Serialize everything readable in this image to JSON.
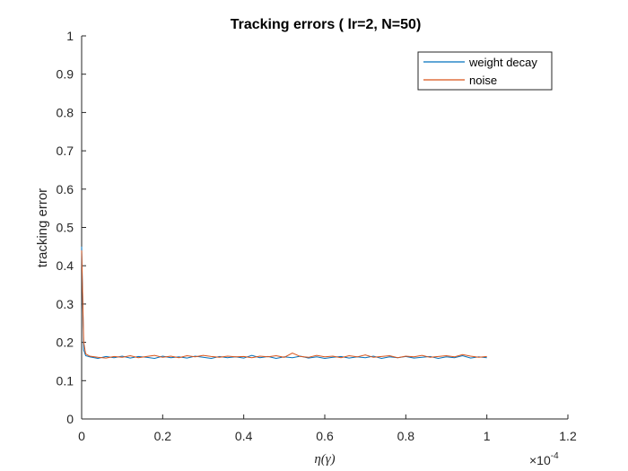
{
  "chart_data": {
    "type": "line",
    "title": "Tracking errors ( lr=2, N=50)",
    "xlabel_parts": [
      "η(",
      "γ",
      ")"
    ],
    "ylabel": "tracking error",
    "x_multiplier_base": "×10",
    "x_multiplier_exp": "-4",
    "xlim": [
      0,
      1.2
    ],
    "ylim": [
      0,
      1
    ],
    "x_ticks": [
      0,
      0.2,
      0.4,
      0.6,
      0.8,
      1,
      1.2
    ],
    "x_tick_labels": [
      "0",
      "0.2",
      "0.4",
      "0.6",
      "0.8",
      "1",
      "1.2"
    ],
    "y_ticks": [
      0,
      0.1,
      0.2,
      0.3,
      0.4,
      0.5,
      0.6,
      0.7,
      0.8,
      0.9,
      1
    ],
    "y_tick_labels": [
      "0",
      "0.1",
      "0.2",
      "0.3",
      "0.4",
      "0.5",
      "0.6",
      "0.7",
      "0.8",
      "0.9",
      "1"
    ],
    "x_units_note": "x values shown in units of 10^-4",
    "legend_position": "top-right",
    "grid": false,
    "series": [
      {
        "name": "weight decay",
        "color": "#0072BD",
        "x": [
          0,
          0.005,
          0.01,
          0.02,
          0.04,
          0.06,
          0.08,
          0.1,
          0.12,
          0.14,
          0.16,
          0.18,
          0.2,
          0.22,
          0.24,
          0.26,
          0.28,
          0.3,
          0.32,
          0.34,
          0.36,
          0.38,
          0.4,
          0.42,
          0.44,
          0.46,
          0.48,
          0.5,
          0.52,
          0.54,
          0.56,
          0.58,
          0.6,
          0.62,
          0.64,
          0.66,
          0.68,
          0.7,
          0.72,
          0.74,
          0.76,
          0.78,
          0.8,
          0.82,
          0.84,
          0.86,
          0.88,
          0.9,
          0.92,
          0.94,
          0.96,
          0.98,
          1.0
        ],
        "y": [
          0.45,
          0.18,
          0.165,
          0.162,
          0.158,
          0.163,
          0.16,
          0.164,
          0.159,
          0.163,
          0.161,
          0.158,
          0.164,
          0.16,
          0.162,
          0.159,
          0.164,
          0.161,
          0.158,
          0.163,
          0.16,
          0.162,
          0.159,
          0.166,
          0.16,
          0.163,
          0.158,
          0.162,
          0.16,
          0.164,
          0.159,
          0.162,
          0.158,
          0.161,
          0.163,
          0.159,
          0.162,
          0.16,
          0.164,
          0.158,
          0.162,
          0.16,
          0.163,
          0.159,
          0.161,
          0.163,
          0.158,
          0.162,
          0.16,
          0.165,
          0.159,
          0.162,
          0.16
        ]
      },
      {
        "name": "noise",
        "color": "#D95319",
        "x": [
          0,
          0.005,
          0.01,
          0.02,
          0.04,
          0.06,
          0.08,
          0.1,
          0.12,
          0.14,
          0.16,
          0.18,
          0.2,
          0.22,
          0.24,
          0.26,
          0.28,
          0.3,
          0.32,
          0.34,
          0.36,
          0.38,
          0.4,
          0.42,
          0.44,
          0.46,
          0.48,
          0.5,
          0.52,
          0.54,
          0.56,
          0.58,
          0.6,
          0.62,
          0.64,
          0.66,
          0.68,
          0.7,
          0.72,
          0.74,
          0.76,
          0.78,
          0.8,
          0.82,
          0.84,
          0.86,
          0.88,
          0.9,
          0.92,
          0.94,
          0.96,
          0.98,
          1.0
        ],
        "y": [
          0.44,
          0.2,
          0.17,
          0.164,
          0.161,
          0.159,
          0.163,
          0.161,
          0.165,
          0.16,
          0.163,
          0.166,
          0.161,
          0.164,
          0.16,
          0.165,
          0.162,
          0.166,
          0.163,
          0.161,
          0.164,
          0.162,
          0.163,
          0.16,
          0.164,
          0.162,
          0.165,
          0.161,
          0.172,
          0.163,
          0.161,
          0.166,
          0.162,
          0.164,
          0.16,
          0.165,
          0.162,
          0.167,
          0.161,
          0.163,
          0.165,
          0.16,
          0.164,
          0.162,
          0.166,
          0.161,
          0.163,
          0.165,
          0.162,
          0.168,
          0.164,
          0.161,
          0.163
        ]
      }
    ]
  }
}
